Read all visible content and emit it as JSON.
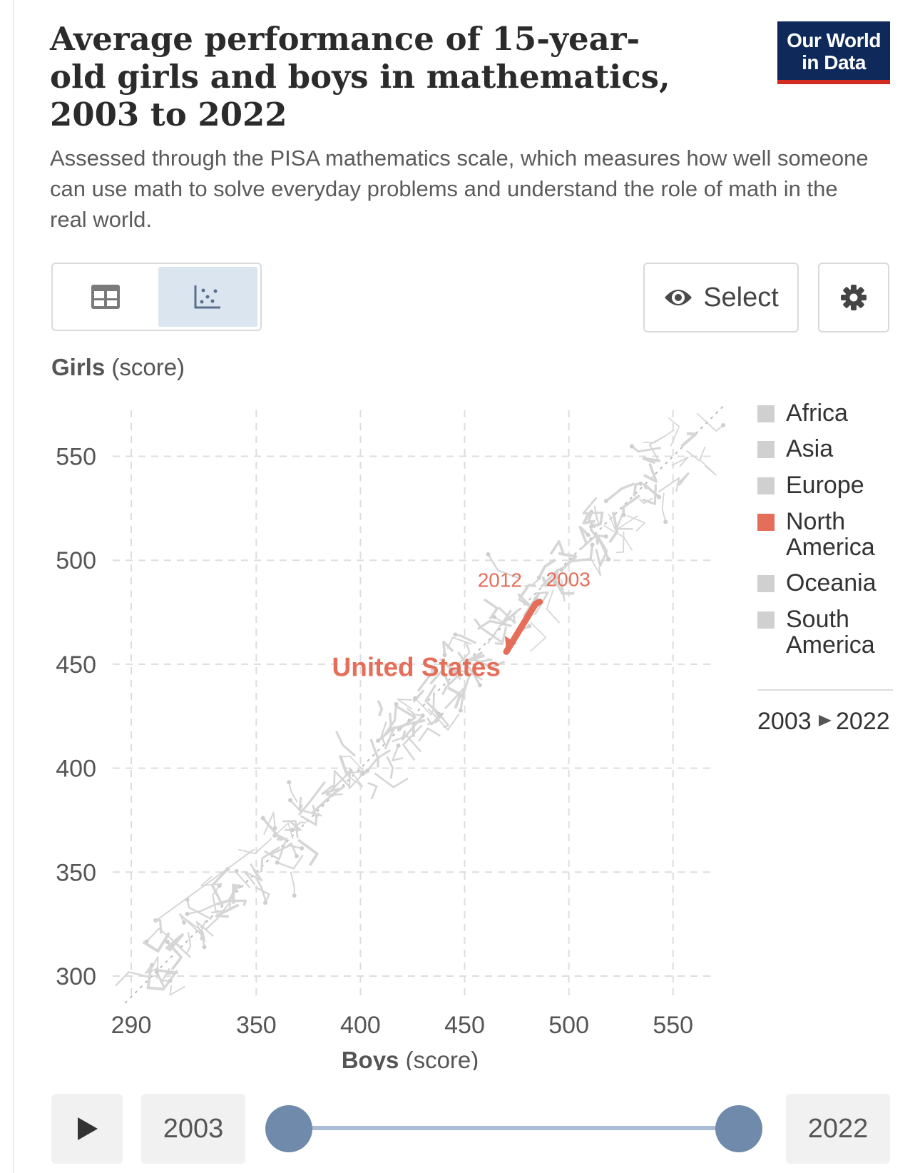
{
  "header": {
    "title": "Average performance of 15-year-old girls and boys in mathematics, 2003 to 2022",
    "subtitle": "Assessed through the PISA mathematics scale, which measures how well someone can use math to solve everyday problems and understand the role of math in the real world.",
    "logo_line1": "Our World",
    "logo_line2": "in Data",
    "logo_color": "#0f2a5a",
    "logo_accent": "#d42b21"
  },
  "toolbar": {
    "table_icon": "table-icon",
    "chart_icon": "scatter-chart-icon",
    "select_label": "Select",
    "select_icon": "eye-icon",
    "settings_icon": "gear-icon"
  },
  "chart_data": {
    "type": "scatter",
    "ylabel_bold": "Girls",
    "ylabel_unit": " (score)",
    "xlabel_bold": "Boys",
    "xlabel_unit": " (score)",
    "x_ticks": [
      290,
      350,
      400,
      450,
      500,
      550
    ],
    "y_ticks": [
      300,
      350,
      400,
      450,
      500,
      550
    ],
    "xlim": [
      287,
      590
    ],
    "ylim": [
      290,
      575
    ],
    "grid": true,
    "parity_line": true,
    "legend_position": "right",
    "legend": [
      {
        "name": "Africa",
        "color": "#d0d0d0"
      },
      {
        "name": "Asia",
        "color": "#d0d0d0"
      },
      {
        "name": "Europe",
        "color": "#d0d0d0"
      },
      {
        "name": "North America",
        "color": "#e56e5a"
      },
      {
        "name": "Oceania",
        "color": "#d0d0d0"
      },
      {
        "name": "South America",
        "color": "#d0d0d0"
      }
    ],
    "time_range_label_start": "2003",
    "time_range_label_end": "2022",
    "highlight_series": {
      "name": "United States",
      "color": "#e56e5a",
      "points": [
        {
          "year": "2003",
          "x": 486,
          "y": 480
        },
        {
          "year": "2012",
          "x": 484,
          "y": 479
        },
        {
          "year": "2022",
          "x": 470,
          "y": 456
        }
      ],
      "labelled_years": [
        "2012",
        "2003"
      ]
    },
    "background_series_color": "#d6d6d6"
  },
  "timeline": {
    "start": "2003",
    "end": "2022",
    "play_icon": "play-icon",
    "start_fraction": 0,
    "end_fraction": 1
  }
}
